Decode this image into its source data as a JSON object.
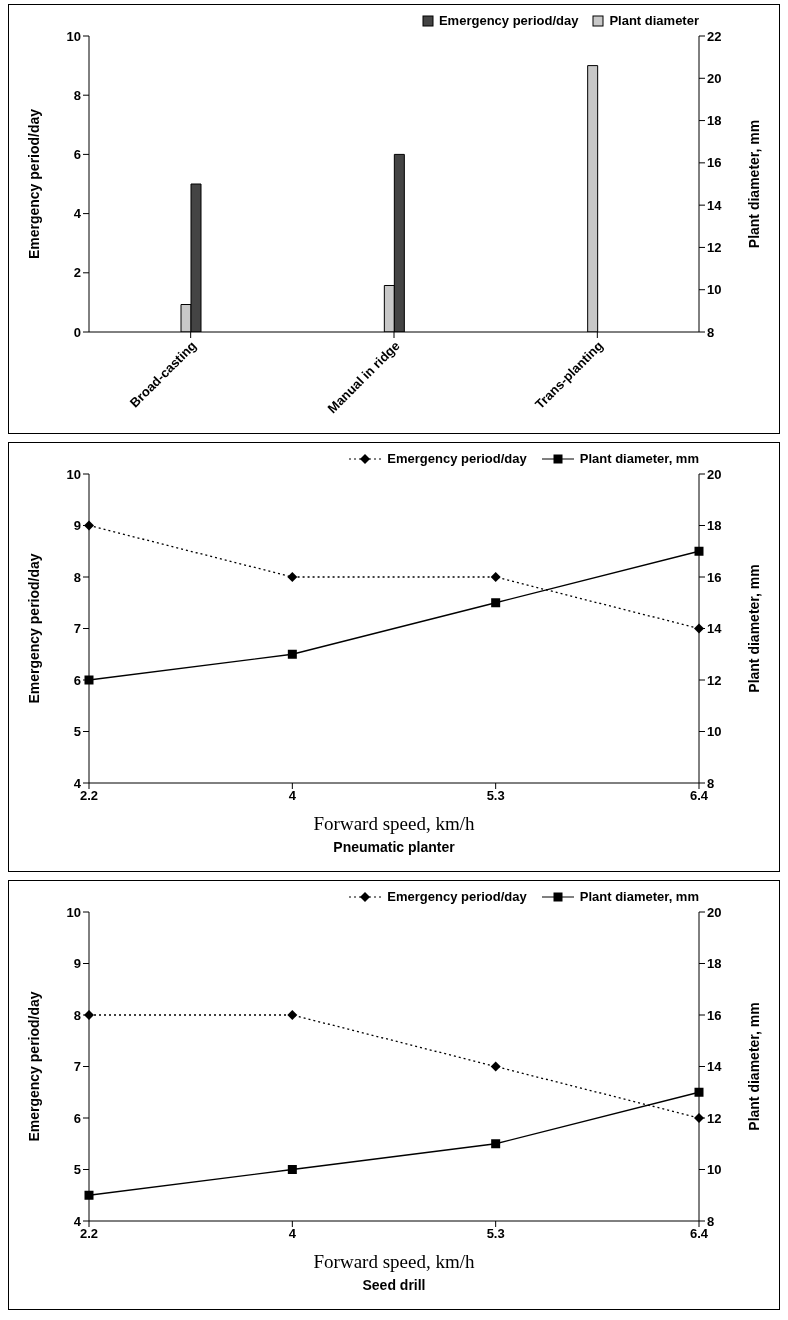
{
  "chart_data": [
    {
      "type": "bar",
      "categories": [
        "Broad-casting",
        "Manual in ridge",
        "Trans-planting"
      ],
      "ylabel": "Emergency period/day",
      "y2label": "Plant diameter, mm",
      "ylim": [
        0,
        10
      ],
      "yticks": [
        0,
        2,
        4,
        6,
        8,
        10
      ],
      "y2lim": [
        8,
        22
      ],
      "y2ticks": [
        8,
        10,
        12,
        14,
        16,
        18,
        20,
        22
      ],
      "legend": "top right",
      "grid": false,
      "series": [
        {
          "name": "Emergency period/day",
          "color": "#444444",
          "values": [
            5,
            6,
            null
          ]
        },
        {
          "name": "Plant diameter",
          "color": "#c8c8c8",
          "axis": "y2",
          "values": [
            9.3,
            10.2,
            20.6
          ]
        }
      ]
    },
    {
      "type": "line",
      "categories": [
        "2.2",
        "4",
        "5.3",
        "6.4"
      ],
      "xlabel": "Forward speed, km/h",
      "title": "Pneumatic planter",
      "ylabel": "Emergency period/day",
      "y2label": "Plant diameter, mm",
      "ylim": [
        4,
        10
      ],
      "yticks": [
        4,
        5,
        6,
        7,
        8,
        9,
        10
      ],
      "y2lim": [
        8,
        20
      ],
      "y2ticks": [
        8,
        10,
        12,
        14,
        16,
        18,
        20
      ],
      "legend": "top right",
      "grid": false,
      "series": [
        {
          "name": "Emergency period/day",
          "color": "#000000",
          "marker": "diamond",
          "line_style": "dotted",
          "values": [
            9,
            8,
            8,
            7
          ]
        },
        {
          "name": "Plant diameter, mm",
          "color": "#000000",
          "marker": "square",
          "line_style": "solid",
          "axis": "y2",
          "values": [
            12,
            13,
            15,
            17
          ]
        }
      ]
    },
    {
      "type": "line",
      "categories": [
        "2.2",
        "4",
        "5.3",
        "6.4"
      ],
      "xlabel": "Forward speed, km/h",
      "title": "Seed drill",
      "ylabel": "Emergency period/day",
      "y2label": "Plant diameter, mm",
      "ylim": [
        4,
        10
      ],
      "yticks": [
        4,
        5,
        6,
        7,
        8,
        9,
        10
      ],
      "y2lim": [
        8,
        20
      ],
      "y2ticks": [
        8,
        10,
        12,
        14,
        16,
        18,
        20
      ],
      "legend": "top right",
      "grid": false,
      "series": [
        {
          "name": "Emergency period/day",
          "color": "#000000",
          "marker": "diamond",
          "line_style": "dotted",
          "values": [
            8,
            8,
            7,
            6
          ]
        },
        {
          "name": "Plant diameter, mm",
          "color": "#000000",
          "marker": "square",
          "line_style": "solid",
          "axis": "y2",
          "values": [
            9,
            10,
            11,
            13
          ]
        }
      ]
    }
  ]
}
